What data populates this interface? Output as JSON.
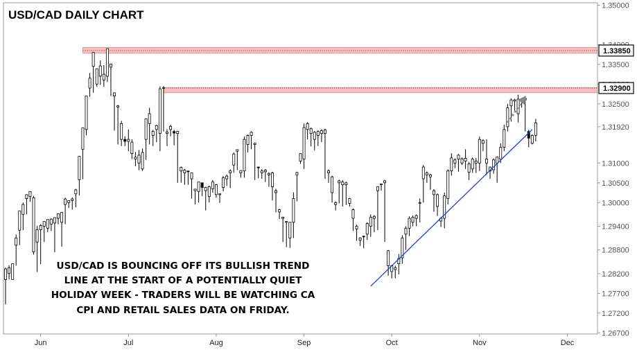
{
  "chart_data": {
    "type": "candlestick",
    "title": "USD/CAD DAILY CHART",
    "annotation": [
      "USD/CAD IS BOUNCING OFF ITS BULLISH TREND",
      "LINE AT THE START OF A POTENTIALLY QUIET",
      "HOLIDAY WEEK - TRADERS WILL BE WATCHING CA",
      "CPI AND RETAIL SALES DATA ON FRIDAY."
    ],
    "y_ticks": [
      "1.35000",
      "1.34000",
      "1.33500",
      "1.33000",
      "1.32500",
      "1.31920",
      "1.31000",
      "1.30500",
      "1.30000",
      "1.29400",
      "1.28800",
      "1.28200",
      "1.27700",
      "1.27200",
      "1.26700"
    ],
    "y_tick_values": [
      1.35,
      1.34,
      1.335,
      1.33,
      1.325,
      1.3192,
      1.31,
      1.305,
      1.3,
      1.294,
      1.288,
      1.282,
      1.277,
      1.272,
      1.267
    ],
    "ylim": [
      1.2667,
      1.3506
    ],
    "x_ticks": [
      "Jun",
      "Jul",
      "Aug",
      "Sep",
      "Oct",
      "Nov",
      "Dec"
    ],
    "x_tick_index": [
      10,
      35,
      60,
      85,
      110,
      135,
      160
    ],
    "x_range": [
      0,
      168
    ],
    "resistance_levels": [
      {
        "label": "1.33850",
        "value": 1.3385,
        "zone": [
          1.3378,
          1.3393
        ],
        "start_index": 22
      },
      {
        "label": "1.32900",
        "value": 1.329,
        "zone": [
          1.3278,
          1.3291
        ],
        "start_index": 45
      }
    ],
    "trendline": {
      "start": [
        104,
        1.2788
      ],
      "end": [
        150,
        1.3185
      ],
      "color": "#1f3fe0"
    },
    "projection_arrow": {
      "start": [
        143,
        1.3202
      ],
      "end": [
        148,
        1.3268
      ],
      "color": "#888888"
    },
    "colors": {
      "bull": "#ffffff",
      "bear": "#000000",
      "zone": "#f7c0c0",
      "zone_edge": "#e07070",
      "axis": "#999999",
      "label_box": "#000000"
    },
    "candles": [
      [
        1.2805,
        1.2742,
        1.2832,
        1.2835
      ],
      [
        1.282,
        1.2805,
        1.2835,
        1.2841
      ],
      [
        1.2805,
        1.2835,
        1.2845,
        1.2844
      ],
      [
        1.2892,
        1.284,
        1.291,
        1.2919
      ],
      [
        1.293,
        1.2892,
        1.2979,
        1.2976
      ],
      [
        1.297,
        1.293,
        1.2995,
        1.3
      ],
      [
        1.301,
        1.297,
        1.302,
        1.3021
      ],
      [
        1.3015,
        1.3002,
        1.3028,
        1.3022
      ],
      [
        1.2875,
        1.2868,
        1.3012,
        1.3017
      ],
      [
        1.29,
        1.2824,
        1.2931,
        1.2941
      ],
      [
        1.2931,
        1.2844,
        1.2942,
        1.2945
      ],
      [
        1.294,
        1.29,
        1.2952,
        1.2946
      ],
      [
        1.2935,
        1.2925,
        1.2957,
        1.295
      ],
      [
        1.2945,
        1.2928,
        1.2958,
        1.296
      ],
      [
        1.2948,
        1.2874,
        1.2962,
        1.2962
      ],
      [
        1.296,
        1.2945,
        1.2972,
        1.2972
      ],
      [
        1.295,
        1.2888,
        1.2975,
        1.2976
      ],
      [
        1.2995,
        1.2945,
        1.3009,
        1.3012
      ],
      [
        1.3,
        1.2986,
        1.3005,
        1.3
      ],
      [
        1.3005,
        1.2982,
        1.3009,
        1.3013
      ],
      [
        1.3022,
        1.2988,
        1.3032,
        1.3035
      ],
      [
        1.3058,
        1.3018,
        1.3117,
        1.3118
      ],
      [
        1.3135,
        1.3059,
        1.3189,
        1.3185
      ],
      [
        1.3185,
        1.317,
        1.327,
        1.327
      ],
      [
        1.329,
        1.3268,
        1.3315,
        1.3328
      ],
      [
        1.3345,
        1.3278,
        1.338,
        1.3381
      ],
      [
        1.33,
        1.3293,
        1.3339,
        1.3339
      ],
      [
        1.332,
        1.3298,
        1.3346,
        1.336
      ],
      [
        1.331,
        1.3293,
        1.3325,
        1.3348
      ],
      [
        1.332,
        1.3305,
        1.339,
        1.339
      ],
      [
        1.3343,
        1.327,
        1.3351,
        1.3352
      ],
      [
        1.327,
        1.3182,
        1.3278,
        1.3278
      ],
      [
        1.3242,
        1.3147,
        1.3245,
        1.3247
      ],
      [
        1.316,
        1.3143,
        1.32,
        1.3207
      ],
      [
        1.316,
        1.3143,
        1.3155,
        1.3168
      ],
      [
        1.3155,
        1.313,
        1.316,
        1.3185
      ],
      [
        1.3124,
        1.311,
        1.3153,
        1.316
      ],
      [
        1.311,
        1.3092,
        1.3115,
        1.3128
      ],
      [
        1.31,
        1.3082,
        1.312,
        1.3133
      ],
      [
        1.3085,
        1.308,
        1.3127,
        1.3137
      ],
      [
        1.316,
        1.3108,
        1.3212,
        1.3212
      ],
      [
        1.32,
        1.3147,
        1.3225,
        1.324
      ],
      [
        1.317,
        1.3143,
        1.318,
        1.3184
      ],
      [
        1.3185,
        1.3153,
        1.3195,
        1.3197
      ],
      [
        1.3175,
        1.313,
        1.3288,
        1.3294
      ],
      [
        1.329,
        1.318,
        1.3291,
        1.3295
      ],
      [
        1.3175,
        1.3143,
        1.3179,
        1.3186
      ],
      [
        1.3185,
        1.3168,
        1.3193,
        1.3197
      ],
      [
        1.318,
        1.3145,
        1.3176,
        1.3184
      ],
      [
        1.3175,
        1.305,
        1.318,
        1.3182
      ],
      [
        1.308,
        1.305,
        1.3089,
        1.3091
      ],
      [
        1.3075,
        1.3045,
        1.3082,
        1.3085
      ],
      [
        1.308,
        1.3045,
        1.3078,
        1.3079
      ],
      [
        1.306,
        1.301,
        1.3075,
        1.3076
      ],
      [
        1.303,
        1.2995,
        1.3034,
        1.3034
      ],
      [
        1.3028,
        1.3,
        1.3052,
        1.3052
      ],
      [
        1.305,
        1.3016,
        1.3038,
        1.304
      ],
      [
        1.303,
        1.298,
        1.3038,
        1.304
      ],
      [
        1.3015,
        1.3,
        1.304,
        1.3043
      ],
      [
        1.3035,
        1.3025,
        1.3052,
        1.3057
      ],
      [
        1.302,
        1.3012,
        1.3045,
        1.3047
      ],
      [
        1.302,
        1.2999,
        1.3022,
        1.3022
      ],
      [
        1.3038,
        1.3028,
        1.3063,
        1.3067
      ],
      [
        1.306,
        1.3042,
        1.3067,
        1.3071
      ],
      [
        1.3075,
        1.3037,
        1.308,
        1.3084
      ],
      [
        1.3095,
        1.3076,
        1.3123,
        1.3127
      ],
      [
        1.313,
        1.3082,
        1.3134,
        1.3134
      ],
      [
        1.3075,
        1.3063,
        1.3081,
        1.3082
      ],
      [
        1.308,
        1.3063,
        1.316,
        1.3167
      ],
      [
        1.3147,
        1.3127,
        1.317,
        1.3172
      ],
      [
        1.317,
        1.3135,
        1.3178,
        1.318
      ],
      [
        1.3147,
        1.3057,
        1.315,
        1.3152
      ],
      [
        1.309,
        1.3062,
        1.3088,
        1.309
      ],
      [
        1.3075,
        1.306,
        1.308,
        1.3085
      ],
      [
        1.3078,
        1.3052,
        1.3082,
        1.3085
      ],
      [
        1.307,
        1.304,
        1.3073,
        1.3077
      ],
      [
        1.304,
        1.3005,
        1.3075,
        1.3078
      ],
      [
        1.3025,
        1.2975,
        1.303,
        1.3035
      ],
      [
        1.2976,
        1.2958,
        1.2982,
        1.2984
      ],
      [
        1.296,
        1.29,
        1.2963,
        1.2964
      ],
      [
        1.295,
        1.2887,
        1.2952,
        1.2953
      ],
      [
        1.291,
        1.2885,
        1.295,
        1.295
      ],
      [
        1.295,
        1.291,
        1.301,
        1.3026
      ],
      [
        1.307,
        1.3003,
        1.3076,
        1.3078
      ],
      [
        1.3105,
        1.3098,
        1.3124,
        1.3125
      ],
      [
        1.311,
        1.3085,
        1.319,
        1.32
      ],
      [
        1.3185,
        1.316,
        1.32,
        1.3204
      ],
      [
        1.3175,
        1.3142,
        1.3187,
        1.319
      ],
      [
        1.316,
        1.3132,
        1.3178,
        1.3181
      ],
      [
        1.317,
        1.3143,
        1.318,
        1.3183
      ],
      [
        1.3175,
        1.3153,
        1.3182,
        1.3186
      ],
      [
        1.3175,
        1.306,
        1.3184,
        1.3187
      ],
      [
        1.3075,
        1.305,
        1.308,
        1.3084
      ],
      [
        1.3025,
        1.3,
        1.3065,
        1.3068
      ],
      [
        1.2995,
        1.298,
        1.3,
        1.3003
      ],
      [
        1.305,
        1.2998,
        1.3055,
        1.3058
      ],
      [
        1.3045,
        1.299,
        1.3052,
        1.3057
      ],
      [
        1.3045,
        1.2994,
        1.305,
        1.3053
      ],
      [
        1.2998,
        1.299,
        1.301,
        1.3012
      ],
      [
        1.296,
        1.2928,
        1.2982,
        1.2985
      ],
      [
        1.2933,
        1.2903,
        1.294,
        1.2944
      ],
      [
        1.2905,
        1.289,
        1.291,
        1.2912
      ],
      [
        1.2915,
        1.2884,
        1.2913,
        1.2915
      ],
      [
        1.292,
        1.2905,
        1.2947,
        1.295
      ],
      [
        1.294,
        1.2913,
        1.2963,
        1.297
      ],
      [
        1.296,
        1.2925,
        1.2965,
        1.2968
      ],
      [
        1.303,
        1.293,
        1.304,
        1.304
      ],
      [
        1.3045,
        1.303,
        1.3047,
        1.3048
      ],
      [
        1.305,
        1.29,
        1.3055,
        1.3057
      ],
      [
        1.284,
        1.2815,
        1.2878,
        1.288
      ],
      [
        1.2825,
        1.2808,
        1.284,
        1.2842
      ],
      [
        1.283,
        1.2808,
        1.2835,
        1.284
      ],
      [
        1.2845,
        1.2818,
        1.2858,
        1.287
      ],
      [
        1.286,
        1.2845,
        1.291,
        1.2917
      ],
      [
        1.292,
        1.288,
        1.2935,
        1.294
      ],
      [
        1.2935,
        1.2915,
        1.296,
        1.2965
      ],
      [
        1.295,
        1.294,
        1.2963,
        1.2967
      ],
      [
        1.296,
        1.294,
        1.2967,
        1.297
      ],
      [
        1.3,
        1.295,
        1.3,
        1.301
      ],
      [
        1.306,
        1.3,
        1.309,
        1.3095
      ],
      [
        1.307,
        1.305,
        1.3075,
        1.3079
      ],
      [
        1.3065,
        1.3032,
        1.307,
        1.3073
      ],
      [
        1.302,
        1.2977,
        1.303,
        1.3034
      ],
      [
        1.299,
        1.2966,
        1.302,
        1.3023
      ],
      [
        1.2953,
        1.2938,
        1.296,
        1.2963
      ],
      [
        1.296,
        1.2935,
        1.3017,
        1.3025
      ],
      [
        1.301,
        1.2995,
        1.308,
        1.3084
      ],
      [
        1.308,
        1.3068,
        1.3113,
        1.3125
      ],
      [
        1.31,
        1.3087,
        1.3108,
        1.3112
      ],
      [
        1.311,
        1.3078,
        1.312,
        1.3123
      ],
      [
        1.31,
        1.3095,
        1.3111,
        1.3114
      ],
      [
        1.3105,
        1.3085,
        1.3112,
        1.3135
      ],
      [
        1.3077,
        1.3057,
        1.3098,
        1.3103
      ],
      [
        1.3085,
        1.3075,
        1.311,
        1.3114
      ],
      [
        1.31,
        1.3075,
        1.3105,
        1.3113
      ],
      [
        1.31,
        1.308,
        1.316,
        1.3167
      ],
      [
        1.315,
        1.313,
        1.3157,
        1.316
      ],
      [
        1.31,
        1.307,
        1.311,
        1.316
      ],
      [
        1.308,
        1.306,
        1.309,
        1.309
      ],
      [
        1.3083,
        1.3073,
        1.3108,
        1.3112
      ],
      [
        1.31,
        1.305,
        1.3115,
        1.3117
      ],
      [
        1.311,
        1.31,
        1.314,
        1.315
      ],
      [
        1.314,
        1.313,
        1.3185,
        1.3197
      ],
      [
        1.3192,
        1.318,
        1.324,
        1.325
      ],
      [
        1.3245,
        1.3205,
        1.326,
        1.3264
      ],
      [
        1.3257,
        1.323,
        1.326,
        1.3263
      ],
      [
        1.3225,
        1.3203,
        1.3262,
        1.3273
      ],
      [
        1.3262,
        1.324,
        1.3263,
        1.3265
      ],
      [
        1.326,
        1.318,
        1.3264,
        1.3265
      ],
      [
        1.318,
        1.314,
        1.3163,
        1.3184
      ],
      [
        1.315,
        1.3147,
        1.317,
        1.3173
      ],
      [
        1.317,
        1.3155,
        1.3202,
        1.3212
      ]
    ]
  }
}
